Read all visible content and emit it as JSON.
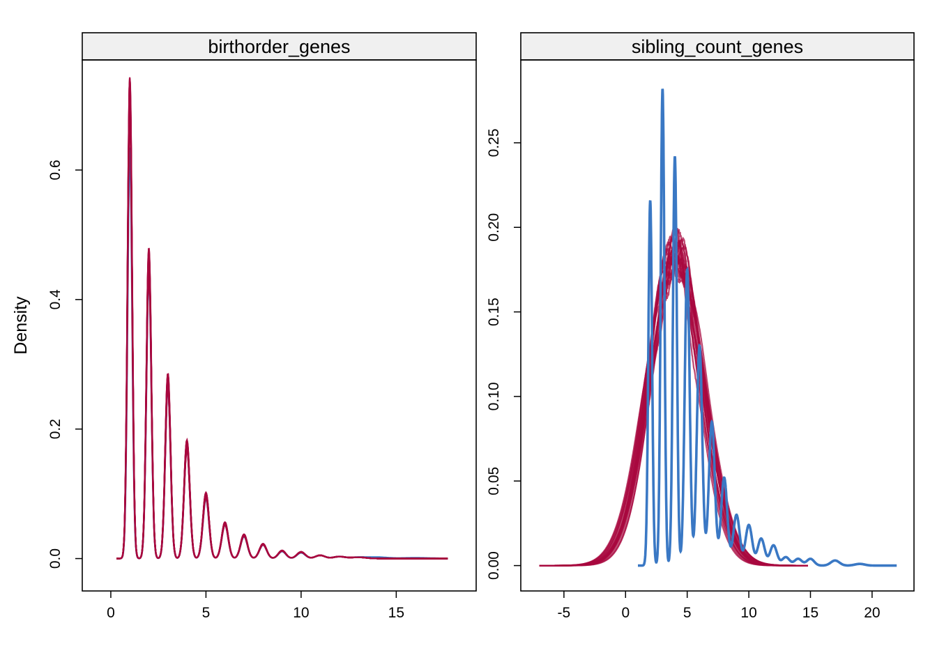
{
  "chart_data": {
    "type": "line",
    "ylabel": "Density",
    "xlabel": "",
    "series_colors": {
      "observed": "#3a78c4",
      "simulated": "#a8083f"
    },
    "panels": [
      {
        "title": "birthorder_genes",
        "xlim": [
          -1.5,
          19.2
        ],
        "ylim": [
          -0.05,
          0.77
        ],
        "x_ticks": [
          0,
          5,
          10,
          15
        ],
        "x_tick_labels": [
          "0",
          "5",
          "10",
          "15"
        ],
        "y_ticks": [
          0.0,
          0.2,
          0.4,
          0.6
        ],
        "y_tick_labels": [
          "0.0",
          "0.2",
          "0.4",
          "0.6"
        ],
        "observed": {
          "x_range": [
            0.3,
            17.7
          ],
          "peaks": [
            {
              "x": 1,
              "height": 0.635,
              "width": 0.12
            },
            {
              "x": 2,
              "height": 0.44,
              "width": 0.13
            },
            {
              "x": 3,
              "height": 0.265,
              "width": 0.14
            },
            {
              "x": 4,
              "height": 0.172,
              "width": 0.15
            },
            {
              "x": 5,
              "height": 0.093,
              "width": 0.16
            },
            {
              "x": 6,
              "height": 0.052,
              "width": 0.17
            },
            {
              "x": 7,
              "height": 0.034,
              "width": 0.18
            },
            {
              "x": 8,
              "height": 0.021,
              "width": 0.19
            },
            {
              "x": 9,
              "height": 0.011,
              "width": 0.2
            },
            {
              "x": 10,
              "height": 0.009,
              "width": 0.22
            },
            {
              "x": 11,
              "height": 0.005,
              "width": 0.25
            },
            {
              "x": 12,
              "height": 0.003,
              "width": 0.3
            },
            {
              "x": 13,
              "height": 0.002,
              "width": 0.4
            },
            {
              "x": 14,
              "height": 0.002,
              "width": 0.5
            },
            {
              "x": 16,
              "height": 0.001,
              "width": 0.8
            }
          ]
        },
        "simulated": {
          "count": 20,
          "x_range": [
            0.3,
            17.7
          ],
          "peaks": [
            {
              "x": 1,
              "height": 0.715,
              "width": 0.12
            },
            {
              "x": 2,
              "height": 0.462,
              "width": 0.13
            },
            {
              "x": 3,
              "height": 0.275,
              "width": 0.14
            },
            {
              "x": 4,
              "height": 0.176,
              "width": 0.15
            },
            {
              "x": 5,
              "height": 0.098,
              "width": 0.16
            },
            {
              "x": 6,
              "height": 0.054,
              "width": 0.17
            },
            {
              "x": 7,
              "height": 0.036,
              "width": 0.18
            },
            {
              "x": 8,
              "height": 0.022,
              "width": 0.19
            },
            {
              "x": 9,
              "height": 0.012,
              "width": 0.2
            },
            {
              "x": 10,
              "height": 0.01,
              "width": 0.22
            },
            {
              "x": 11,
              "height": 0.005,
              "width": 0.25
            },
            {
              "x": 12,
              "height": 0.003,
              "width": 0.3
            },
            {
              "x": 13,
              "height": 0.002,
              "width": 0.4
            }
          ]
        }
      },
      {
        "title": "sibling_count_genes",
        "xlim": [
          -8.5,
          23.4
        ],
        "ylim": [
          -0.015,
          0.299
        ],
        "x_ticks": [
          -5,
          0,
          5,
          10,
          15,
          20
        ],
        "x_tick_labels": [
          "-5",
          "0",
          "5",
          "10",
          "15",
          "20"
        ],
        "y_ticks": [
          0.0,
          0.05,
          0.1,
          0.15,
          0.2,
          0.25
        ],
        "y_tick_labels": [
          "0.00",
          "0.05",
          "0.10",
          "0.15",
          "0.20",
          "0.25"
        ],
        "observed": {
          "x_range": [
            1.0,
            22.0
          ],
          "peaks": [
            {
              "x": 2,
              "height": 0.216,
              "width": 0.15
            },
            {
              "x": 3,
              "height": 0.282,
              "width": 0.15
            },
            {
              "x": 4,
              "height": 0.242,
              "width": 0.16
            },
            {
              "x": 5,
              "height": 0.175,
              "width": 0.2
            },
            {
              "x": 6,
              "height": 0.13,
              "width": 0.22
            },
            {
              "x": 7,
              "height": 0.085,
              "width": 0.24
            },
            {
              "x": 8,
              "height": 0.052,
              "width": 0.25
            },
            {
              "x": 9,
              "height": 0.03,
              "width": 0.26
            },
            {
              "x": 10,
              "height": 0.024,
              "width": 0.27
            },
            {
              "x": 11,
              "height": 0.016,
              "width": 0.28
            },
            {
              "x": 12,
              "height": 0.012,
              "width": 0.28
            },
            {
              "x": 13,
              "height": 0.005,
              "width": 0.3
            },
            {
              "x": 14,
              "height": 0.004,
              "width": 0.3
            },
            {
              "x": 15,
              "height": 0.004,
              "width": 0.3
            },
            {
              "x": 17,
              "height": 0.003,
              "width": 0.35
            },
            {
              "x": 19,
              "height": 0.001,
              "width": 0.4
            }
          ]
        },
        "simulated": {
          "count": 20,
          "x_range": [
            -7.0,
            14.8
          ],
          "mean": 4.0,
          "sd": 2.15,
          "peak_height": 0.185
        }
      }
    ]
  }
}
